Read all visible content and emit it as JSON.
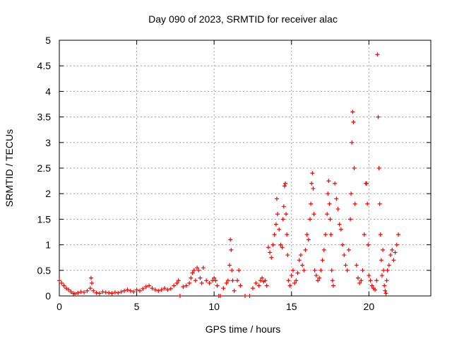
{
  "chart_data": {
    "type": "scatter",
    "title": "Day 090 of 2023, SRMTID for receiver alac",
    "xlabel": "GPS time / hours",
    "ylabel": "SRMTID / TECUs",
    "xlim": [
      0,
      24
    ],
    "ylim": [
      0,
      5
    ],
    "xticks": [
      0,
      5,
      10,
      15,
      20
    ],
    "yticks": [
      0,
      0.5,
      1,
      1.5,
      2,
      2.5,
      3,
      3.5,
      4,
      4.5,
      5
    ],
    "xtick_labels": [
      "0",
      "5",
      "10",
      "15",
      "20"
    ],
    "ytick_labels": [
      "0",
      "0.5",
      "1",
      "1.5",
      "2",
      "2.5",
      "3",
      "3.5",
      "4",
      "4.5",
      "5"
    ],
    "grid": true,
    "marker": "+",
    "series": [
      {
        "name": "SRMTID",
        "color": "#ff0000",
        "x": [
          0.0,
          0.15,
          0.3,
          0.45,
          0.6,
          0.75,
          0.9,
          1.0,
          1.2,
          1.4,
          1.6,
          1.8,
          2.0,
          2.05,
          2.1,
          2.2,
          2.4,
          2.6,
          2.8,
          3.0,
          3.2,
          3.4,
          3.6,
          3.8,
          4.0,
          4.2,
          4.4,
          4.6,
          4.8,
          5.0,
          5.2,
          5.4,
          5.6,
          5.8,
          6.0,
          6.2,
          6.4,
          6.6,
          6.8,
          7.0,
          7.2,
          7.4,
          7.6,
          7.7,
          7.8,
          8.0,
          8.2,
          8.4,
          8.5,
          8.6,
          8.7,
          8.8,
          8.9,
          9.0,
          9.1,
          9.2,
          9.3,
          9.5,
          9.7,
          9.9,
          10.0,
          10.1,
          10.2,
          10.3,
          10.4,
          10.6,
          10.8,
          10.9,
          11.0,
          11.05,
          11.1,
          11.15,
          11.2,
          11.3,
          11.5,
          11.6,
          11.7,
          12.0,
          12.3,
          12.5,
          12.7,
          12.9,
          13.0,
          13.1,
          13.2,
          13.3,
          13.4,
          13.5,
          13.6,
          13.7,
          13.8,
          13.9,
          14.0,
          14.05,
          14.1,
          14.2,
          14.3,
          14.4,
          14.45,
          14.5,
          14.55,
          14.6,
          14.65,
          14.7,
          14.75,
          14.8,
          14.9,
          15.0,
          15.1,
          15.2,
          15.3,
          15.4,
          15.5,
          15.6,
          15.7,
          15.8,
          15.9,
          16.0,
          16.1,
          16.2,
          16.25,
          16.3,
          16.35,
          16.4,
          16.45,
          16.5,
          16.6,
          16.7,
          16.8,
          16.9,
          17.0,
          17.1,
          17.2,
          17.3,
          17.35,
          17.4,
          17.45,
          17.5,
          17.55,
          17.6,
          17.65,
          17.7,
          17.8,
          17.9,
          18.0,
          18.1,
          18.2,
          18.3,
          18.4,
          18.5,
          18.6,
          18.7,
          18.8,
          18.85,
          18.9,
          18.95,
          19.0,
          19.05,
          19.1,
          19.2,
          19.3,
          19.4,
          19.5,
          19.6,
          19.7,
          19.8,
          19.85,
          19.9,
          19.95,
          20.0,
          20.1,
          20.2,
          20.3,
          20.4,
          20.5,
          20.55,
          20.6,
          20.65,
          20.7,
          20.75,
          20.8,
          20.85,
          20.9,
          20.95,
          21.0,
          21.05,
          21.1,
          21.15,
          21.2,
          21.3,
          21.4,
          21.5,
          21.6,
          21.7,
          21.8,
          21.9
        ],
        "y": [
          0.3,
          0.25,
          0.2,
          0.15,
          0.12,
          0.08,
          0.05,
          0.04,
          0.06,
          0.08,
          0.07,
          0.1,
          0.15,
          0.35,
          0.25,
          0.1,
          0.06,
          0.05,
          0.08,
          0.07,
          0.06,
          0.05,
          0.07,
          0.06,
          0.08,
          0.1,
          0.12,
          0.1,
          0.08,
          0.12,
          0.1,
          0.14,
          0.18,
          0.2,
          0.15,
          0.12,
          0.1,
          0.12,
          0.15,
          0.12,
          0.14,
          0.2,
          0.25,
          0.3,
          0.0,
          0.18,
          0.2,
          0.25,
          0.35,
          0.45,
          0.5,
          0.3,
          0.55,
          0.5,
          0.35,
          0.25,
          0.55,
          0.3,
          0.25,
          0.3,
          0.35,
          0.3,
          0.2,
          0.0,
          0.0,
          0.15,
          0.25,
          0.3,
          0.6,
          1.1,
          0.9,
          0.5,
          0.3,
          0.1,
          0.3,
          0.5,
          0.2,
          0.0,
          0.0,
          0.15,
          0.25,
          0.2,
          0.3,
          0.35,
          0.28,
          0.3,
          0.2,
          0.95,
          0.85,
          0.75,
          1.0,
          1.2,
          1.4,
          1.9,
          1.6,
          1.3,
          1.0,
          0.95,
          1.5,
          1.75,
          2.15,
          2.2,
          1.6,
          1.2,
          0.8,
          0.3,
          0.2,
          0.4,
          0.5,
          0.25,
          0.3,
          0.45,
          0.7,
          0.8,
          0.6,
          0.5,
          0.9,
          1.2,
          1.1,
          1.5,
          1.8,
          2.2,
          2.4,
          2.1,
          1.6,
          0.5,
          0.4,
          0.3,
          0.35,
          0.5,
          0.7,
          0.9,
          1.2,
          1.6,
          2.0,
          2.25,
          1.8,
          1.5,
          1.2,
          0.5,
          0.3,
          0.2,
          2.2,
          1.9,
          1.7,
          1.4,
          1.3,
          1.0,
          0.8,
          0.6,
          0.5,
          0.9,
          1.5,
          2.0,
          3.0,
          3.6,
          3.4,
          2.5,
          1.8,
          0.6,
          0.35,
          0.25,
          0.3,
          0.5,
          1.2,
          2.2,
          2.2,
          1.8,
          1.0,
          0.4,
          0.3,
          0.2,
          0.15,
          0.12,
          0.3,
          4.72,
          3.5,
          2.5,
          1.8,
          1.2,
          0.7,
          0.4,
          0.9,
          0.5,
          0.2,
          0.1,
          0.05,
          0.3,
          0.5,
          0.6,
          0.8,
          0.9,
          0.7,
          0.85,
          1.0,
          1.2
        ]
      }
    ]
  }
}
